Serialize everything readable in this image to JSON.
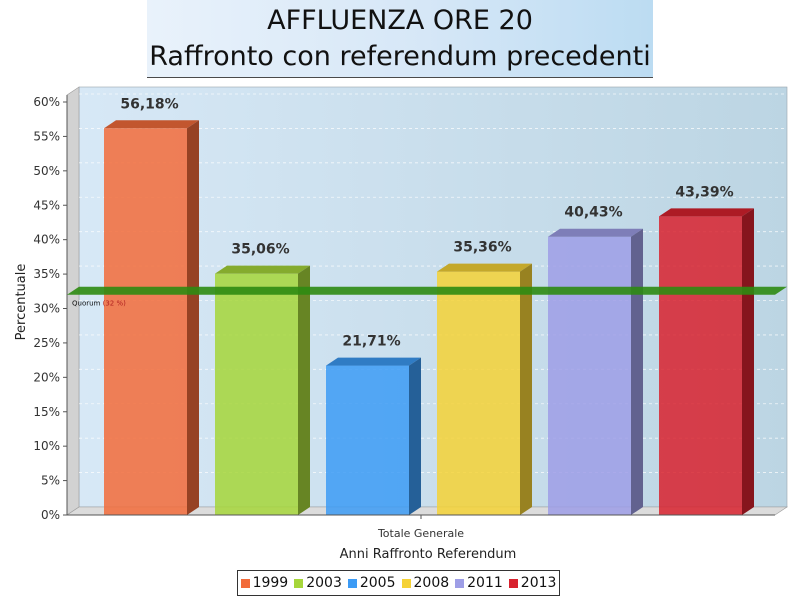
{
  "title": {
    "line1": "AFFLUENZA ORE 20",
    "line2": "Raffronto con referendum precedenti"
  },
  "chart_data": {
    "type": "bar",
    "categories": [
      "Totale Generale"
    ],
    "series": [
      {
        "name": "1999",
        "values": [
          56.18
        ],
        "label": "56,18%",
        "color": "#f26b3a"
      },
      {
        "name": "2003",
        "values": [
          35.06
        ],
        "label": "35,06%",
        "color": "#a6d63a"
      },
      {
        "name": "2005",
        "values": [
          21.71
        ],
        "label": "21,71%",
        "color": "#3c9bf5"
      },
      {
        "name": "2008",
        "values": [
          35.36
        ],
        "label": "35,36%",
        "color": "#f5d236"
      },
      {
        "name": "2011",
        "values": [
          40.43
        ],
        "label": "40,43%",
        "color": "#9e9ee6"
      },
      {
        "name": "2013",
        "values": [
          43.39
        ],
        "label": "43,39%",
        "color": "#d8222e"
      }
    ],
    "xlabel": "Anni Raffronto Referendum",
    "ylabel": "Percentuale",
    "ylim": [
      0,
      60
    ],
    "ytick_labels": [
      "0%",
      "5%",
      "10%",
      "15%",
      "20%",
      "25%",
      "30%",
      "35%",
      "40%",
      "45%",
      "50%",
      "55%",
      "60%"
    ],
    "grid": true,
    "legend_position": "bottom",
    "reference_line": {
      "value": 32,
      "label_text": "Quorum",
      "label_value": "(32 %)",
      "color": "#2e8b12"
    }
  }
}
